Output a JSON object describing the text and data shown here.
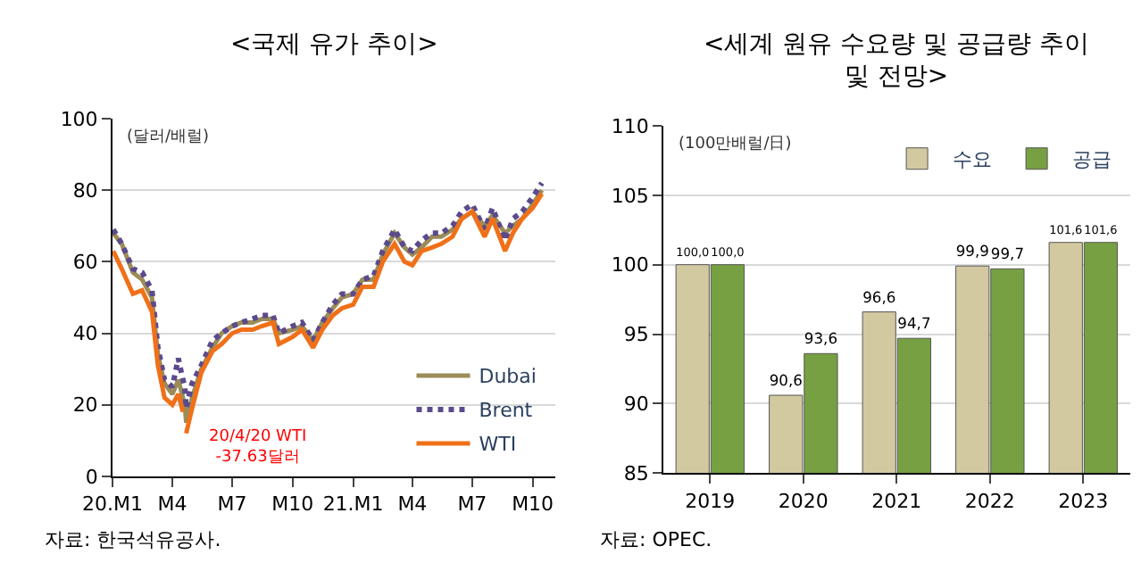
{
  "chart_data": [
    {
      "type": "line",
      "title": "<국제 유가 추이>",
      "ylabel": "(달러/배럴)",
      "x": [
        "2020-01-02",
        "2020-01-15",
        "2020-02-01",
        "2020-02-15",
        "2020-03-01",
        "2020-03-10",
        "2020-03-20",
        "2020-04-01",
        "2020-04-10",
        "2020-04-17",
        "2020-04-20",
        "2020-04-22",
        "2020-05-01",
        "2020-05-15",
        "2020-06-01",
        "2020-06-15",
        "2020-07-01",
        "2020-07-15",
        "2020-08-01",
        "2020-08-15",
        "2020-09-01",
        "2020-09-10",
        "2020-10-01",
        "2020-10-15",
        "2020-11-01",
        "2020-11-15",
        "2020-12-01",
        "2020-12-15",
        "2021-01-01",
        "2021-01-15",
        "2021-02-01",
        "2021-02-15",
        "2021-03-05",
        "2021-03-20",
        "2021-04-01",
        "2021-04-15",
        "2021-05-01",
        "2021-05-15",
        "2021-06-01",
        "2021-06-15",
        "2021-07-01",
        "2021-07-20",
        "2021-08-01",
        "2021-08-20",
        "2021-09-01",
        "2021-09-15",
        "2021-10-01",
        "2021-10-15"
      ],
      "series": [
        {
          "name": "Dubai",
          "color": "#9c8c58",
          "line_style": "solid",
          "values": [
            68,
            65,
            57,
            55,
            50,
            34,
            26,
            23,
            27,
            22,
            20,
            15,
            22,
            30,
            36,
            40,
            42,
            43,
            43,
            44,
            44,
            40,
            41,
            42,
            38,
            43,
            47,
            50,
            51,
            55,
            55,
            62,
            68,
            64,
            62,
            64,
            67,
            67,
            69,
            72,
            74,
            70,
            73,
            68,
            70,
            72,
            76,
            80
          ]
        },
        {
          "name": "Brent",
          "color": "#5b4a8c",
          "line_style": "dotted",
          "values": [
            69,
            65,
            58,
            57,
            52,
            36,
            27,
            25,
            33,
            27,
            25,
            19,
            26,
            31,
            38,
            40,
            42,
            43,
            44,
            45,
            45,
            40,
            42,
            43,
            38,
            43,
            48,
            51,
            51,
            55,
            56,
            63,
            69,
            64,
            63,
            66,
            68,
            68,
            70,
            74,
            76,
            69,
            75,
            66,
            72,
            74,
            78,
            82
          ]
        },
        {
          "name": "WTI",
          "color": "#f07018",
          "line_style": "solid",
          "values": [
            63,
            58,
            51,
            52,
            46,
            31,
            22,
            20,
            23,
            18,
            null,
            12,
            19,
            29,
            35,
            37,
            40,
            41,
            41,
            42,
            43,
            37,
            39,
            41,
            36,
            41,
            45,
            47,
            48,
            53,
            53,
            60,
            65,
            60,
            59,
            63,
            64,
            65,
            67,
            72,
            74,
            67,
            72,
            63,
            68,
            72,
            75,
            79
          ]
        }
      ],
      "xlim": [
        "2020-01-01",
        "2021-11-05"
      ],
      "xticks": [
        {
          "value": "2020-01-01",
          "label": "20.M1"
        },
        {
          "value": "2020-04-01",
          "label": "M4"
        },
        {
          "value": "2020-07-01",
          "label": "M7"
        },
        {
          "value": "2020-10-01",
          "label": "M10"
        },
        {
          "value": "2021-01-01",
          "label": "21.M1"
        },
        {
          "value": "2021-04-01",
          "label": "M4"
        },
        {
          "value": "2021-07-01",
          "label": "M7"
        },
        {
          "value": "2021-10-01",
          "label": "M10"
        }
      ],
      "ylim": [
        0,
        100
      ],
      "yticks": [
        0,
        20,
        40,
        60,
        80,
        100
      ],
      "grid": "y",
      "legend": "bottom right",
      "marker": "none",
      "annotations": [
        "20/4/20 WTI\n-37.63달러",
        "자료: 한국석유공사."
      ]
    },
    {
      "type": "bar",
      "title": "<세계 원유 수요량 및 공급량 추이\n및 전망>",
      "ylabel": "(100만배럴/日)",
      "categories": [
        "2019",
        "2020",
        "2021",
        "2022",
        "2023"
      ],
      "series": [
        {
          "name": "수요",
          "color": "#d3c9a1",
          "values": [
            100.0,
            90.6,
            96.6,
            99.9,
            101.6
          ],
          "value_labels": [
            "100,0",
            "90,6",
            "96,6",
            "99,9",
            "101,6"
          ]
        },
        {
          "name": "공급",
          "color": "#77a042",
          "values": [
            100.0,
            93.6,
            94.7,
            99.7,
            101.6
          ],
          "value_labels": [
            "100,0",
            "93,6",
            "94,7",
            "99,7",
            "101,6"
          ]
        }
      ],
      "ylim": [
        85,
        110
      ],
      "yticks": [
        85,
        90,
        95,
        100,
        105,
        110
      ],
      "grid": "y",
      "legend": "top right",
      "annotations": [
        "자료: OPEC."
      ]
    }
  ]
}
